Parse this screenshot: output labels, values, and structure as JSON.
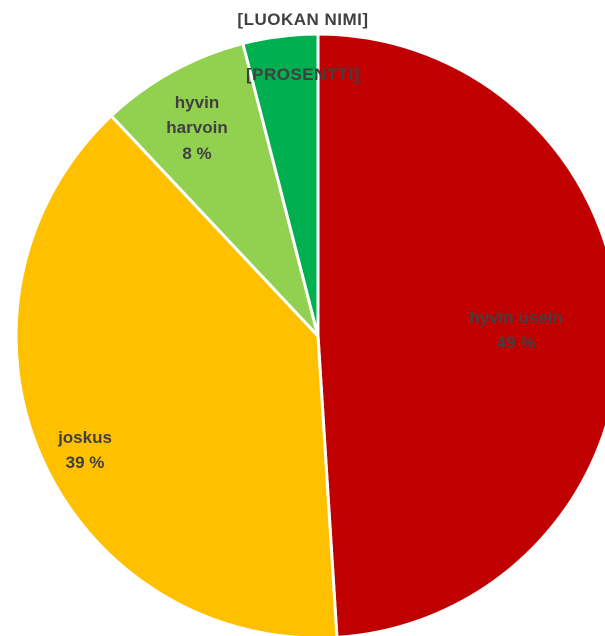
{
  "chart_data": {
    "type": "pie",
    "title": "",
    "start_angle_deg": 0,
    "direction": "clockwise",
    "slices": [
      {
        "category": "hyvin usein",
        "percent_label": "49 %",
        "value": 49,
        "color": "#C00000"
      },
      {
        "category": "joskus",
        "percent_label": "39 %",
        "value": 39,
        "color": "#FFC000"
      },
      {
        "category": "hyvin harvoin",
        "category_lines": [
          "hyvin",
          "harvoin"
        ],
        "percent_label": "8 %",
        "value": 8,
        "color": "#92D050"
      },
      {
        "category": "[LUOKAN NIMI]",
        "percent_label": "[PROSENTTI]",
        "value": 4,
        "color": "#00B050"
      }
    ],
    "legend": "none"
  }
}
